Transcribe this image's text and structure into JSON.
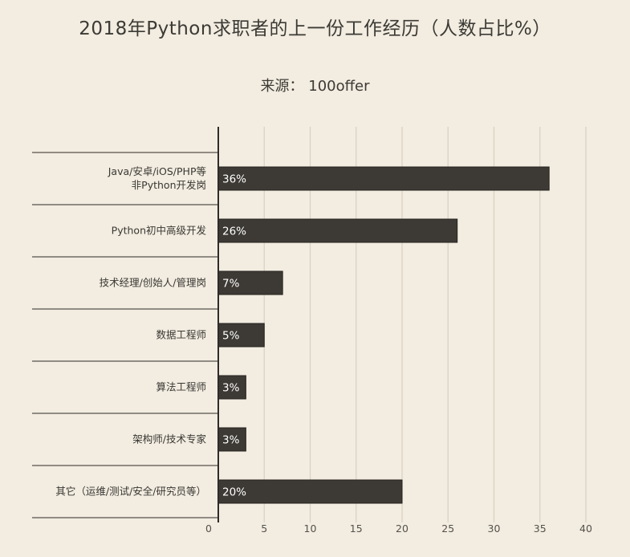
{
  "chart_data": {
    "type": "bar",
    "orientation": "horizontal",
    "title": "2018年Python求职者的上一份工作经历（人数占比%）",
    "subtitle": "来源： 100offer",
    "categories": [
      [
        "Java/安卓/iOS/PHP等",
        "非Python开发岗"
      ],
      [
        "Python初中高级开发"
      ],
      [
        "技术经理/创始人/管理岗"
      ],
      [
        "数据工程师"
      ],
      [
        "算法工程师"
      ],
      [
        "架构师/技术专家"
      ],
      [
        "其它（运维/测试/安全/研究员等）"
      ]
    ],
    "values": [
      36,
      26,
      7,
      5,
      3,
      3,
      20
    ],
    "value_labels": [
      "36%",
      "26%",
      "7%",
      "5%",
      "3%",
      "3%",
      "20%"
    ],
    "xlim": [
      0,
      40
    ],
    "xticks": [
      0,
      5,
      10,
      15,
      20,
      25,
      30,
      35,
      40
    ],
    "grid": true,
    "colors": {
      "bar": "#3d3a35",
      "grid": "#d8d0c2",
      "axis": "#2e2c28",
      "background": "#f2ece1"
    }
  }
}
